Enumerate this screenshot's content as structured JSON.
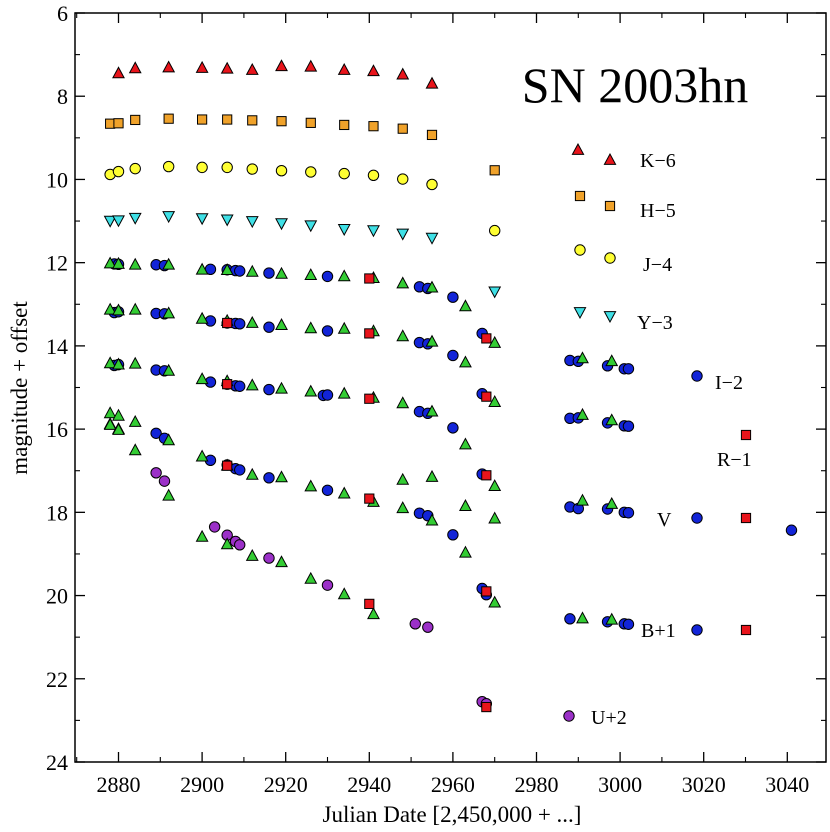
{
  "chart_data": {
    "type": "scatter",
    "title": "SN 2003hn",
    "xlabel": "Julian Date [2,450,000 + ...]",
    "ylabel": "magnitude + offset",
    "xlim": [
      2870,
      3050
    ],
    "ylim": [
      6,
      24
    ],
    "y_inverted": true,
    "x_ticks": [
      2880,
      2900,
      2920,
      2940,
      2960,
      2980,
      3000,
      3020,
      3040
    ],
    "y_ticks": [
      6,
      8,
      10,
      12,
      14,
      16,
      18,
      20,
      22,
      24
    ],
    "colors": {
      "red": "#e8141b",
      "orange": "#f0a22a",
      "yellow": "#ffff33",
      "cyan": "#3fe0e6",
      "blue": "#1224d8",
      "green": "#33cc33",
      "purple": "#9b30c8"
    },
    "series": [
      {
        "name": "K-6",
        "filter": "K",
        "offset": -6,
        "marker": "triangle-up",
        "color": "red",
        "x": [
          2880,
          2884,
          2892,
          2900,
          2906,
          2912,
          2919,
          2926,
          2934,
          2941,
          2948,
          2955
        ],
        "y": [
          7.45,
          7.33,
          7.31,
          7.32,
          7.34,
          7.37,
          7.28,
          7.29,
          7.37,
          7.4,
          7.48,
          7.7
        ]
      },
      {
        "name": "H-5",
        "filter": "H",
        "offset": -5,
        "marker": "square",
        "color": "orange",
        "x": [
          2878,
          2880,
          2884,
          2892,
          2900,
          2906,
          2912,
          2919,
          2926,
          2934,
          2941,
          2948,
          2955,
          2970
        ],
        "y": [
          8.66,
          8.65,
          8.57,
          8.54,
          8.56,
          8.56,
          8.58,
          8.6,
          8.64,
          8.69,
          8.72,
          8.78,
          8.93,
          9.78
        ]
      },
      {
        "name": "J-4",
        "filter": "J",
        "offset": -4,
        "marker": "circle",
        "color": "yellow",
        "x": [
          2878,
          2880,
          2884,
          2892,
          2900,
          2906,
          2912,
          2919,
          2926,
          2934,
          2941,
          2948,
          2955,
          2970
        ],
        "y": [
          9.88,
          9.81,
          9.74,
          9.69,
          9.71,
          9.71,
          9.75,
          9.79,
          9.82,
          9.86,
          9.9,
          9.99,
          10.12,
          11.23
        ]
      },
      {
        "name": "Y-3",
        "filter": "Y",
        "offset": -3,
        "marker": "triangle-down",
        "color": "cyan",
        "x": [
          2878,
          2880,
          2884,
          2892,
          2900,
          2906,
          2912,
          2919,
          2926,
          2934,
          2941,
          2948,
          2955,
          2970
        ],
        "y": [
          10.99,
          10.98,
          10.92,
          10.88,
          10.93,
          10.96,
          11.0,
          11.05,
          11.1,
          11.19,
          11.22,
          11.3,
          11.4,
          12.69
        ]
      },
      {
        "name": "I-2",
        "filter": "I",
        "offset": -2,
        "marker": "circle",
        "color": "blue",
        "x": [
          2879,
          2880,
          2889,
          2891,
          2902,
          2906,
          2908,
          2909,
          2916,
          2930,
          2952,
          2954,
          2960,
          2967,
          2988,
          2990,
          2997,
          3001,
          3002
        ],
        "y": [
          12.03,
          12.04,
          12.05,
          12.07,
          12.16,
          12.17,
          12.19,
          12.2,
          12.25,
          12.33,
          12.58,
          12.62,
          12.83,
          13.7,
          14.35,
          14.37,
          14.48,
          14.55,
          14.55
        ]
      },
      {
        "name": "R-1",
        "filter": "R",
        "offset": -1,
        "marker": "circle",
        "color": "blue",
        "x": [
          2879,
          2880,
          2889,
          2891,
          2902,
          2906,
          2908,
          2909,
          2916,
          2930,
          2952,
          2954,
          2960,
          2967,
          2988,
          2990,
          2997,
          3001,
          3002
        ],
        "y": [
          13.2,
          13.18,
          13.22,
          13.23,
          13.4,
          13.45,
          13.46,
          13.47,
          13.55,
          13.64,
          13.92,
          13.95,
          14.23,
          15.15,
          15.74,
          15.73,
          15.85,
          15.92,
          15.93
        ]
      },
      {
        "name": "V",
        "filter": "V",
        "offset": 0,
        "marker": "circle",
        "color": "blue",
        "x": [
          2879,
          2880,
          2889,
          2891,
          2902,
          2906,
          2908,
          2909,
          2916,
          2929,
          2930,
          2952,
          2954,
          2960,
          2967,
          2988,
          2990,
          2997,
          3001,
          3002
        ],
        "y": [
          14.47,
          14.45,
          14.58,
          14.6,
          14.87,
          14.92,
          14.96,
          14.97,
          15.05,
          15.19,
          15.18,
          15.58,
          15.62,
          15.97,
          17.08,
          17.87,
          17.91,
          17.92,
          18.0,
          18.01
        ]
      },
      {
        "name": "B+1",
        "filter": "B",
        "offset": 1,
        "marker": "circle",
        "color": "blue",
        "x": [
          2889,
          2891,
          2902,
          2906,
          2908,
          2909,
          2916,
          2930,
          2952,
          2954,
          2960,
          2967,
          2968,
          2988,
          2997,
          3001,
          3002
        ],
        "y": [
          16.1,
          16.22,
          16.75,
          16.86,
          16.95,
          16.98,
          17.17,
          17.47,
          18.02,
          18.08,
          18.54,
          19.83,
          19.98,
          20.56,
          20.63,
          20.68,
          20.69
        ]
      },
      {
        "name": "U+2",
        "filter": "U",
        "offset": 2,
        "marker": "circle",
        "color": "purple",
        "x": [
          2889,
          2891,
          2903,
          2906,
          2908,
          2909,
          2916,
          2930,
          2951,
          2954,
          2967,
          2968
        ],
        "y": [
          17.05,
          17.25,
          18.35,
          18.55,
          18.7,
          18.78,
          19.1,
          19.75,
          20.68,
          20.76,
          22.55,
          22.6
        ]
      },
      {
        "name": "green triangles (swope)",
        "marker": "triangle-up",
        "color": "green",
        "x": [
          2878,
          2880,
          2884,
          2892,
          2900,
          2906,
          2912,
          2919,
          2926,
          2934,
          2941,
          2948,
          2955,
          2963,
          2970,
          2991,
          2998,
          2878,
          2880,
          2884,
          2892,
          2900,
          2906,
          2912,
          2919,
          2926,
          2934,
          2941,
          2948,
          2955,
          2963,
          2970,
          2991,
          2998,
          2878,
          2880,
          2884,
          2892,
          2900,
          2906,
          2912,
          2919,
          2926,
          2934,
          2941,
          2948,
          2955,
          2963,
          2970,
          2878,
          2880,
          2884,
          2892,
          2900,
          2906,
          2912,
          2919,
          2926,
          2934,
          2941,
          2948,
          2955,
          2963,
          2970,
          2991,
          2998,
          2878,
          2880,
          2884,
          2892,
          2900,
          2906,
          2912,
          2919,
          2926,
          2934,
          2941,
          2948,
          2955,
          2963,
          2970,
          2991,
          2998,
          2878,
          2880
        ],
        "y": [
          12.02,
          12.03,
          12.05,
          12.05,
          12.17,
          12.18,
          12.22,
          12.27,
          12.3,
          12.33,
          12.37,
          12.5,
          12.6,
          13.05,
          13.93,
          14.3,
          14.37,
          13.13,
          13.15,
          13.13,
          13.22,
          13.35,
          13.4,
          13.45,
          13.5,
          13.58,
          13.59,
          13.65,
          13.77,
          13.9,
          14.4,
          15.35,
          15.66,
          15.79,
          14.42,
          14.45,
          14.43,
          14.6,
          14.8,
          14.85,
          14.95,
          15.03,
          15.1,
          15.15,
          15.25,
          15.38,
          15.58,
          16.37,
          17.37,
          15.62,
          15.68,
          15.83,
          16.27,
          16.66,
          16.88,
          17.1,
          17.16,
          17.38,
          17.55,
          17.75,
          17.9,
          18.2,
          18.97,
          20.17,
          17.72,
          17.8,
          15.88,
          16.0,
          16.51,
          17.6,
          18.59,
          18.77,
          19.05,
          19.2,
          19.6,
          19.97,
          20.45,
          17.22,
          17.15,
          17.85,
          18.15,
          20.55,
          20.58,
          15.9,
          16.02
        ]
      },
      {
        "name": "red squares",
        "marker": "square",
        "color": "red",
        "x": [
          2940,
          2968,
          2906,
          2940,
          2968,
          2906,
          2940,
          2968,
          2906,
          2940,
          2968,
          2940,
          2968
        ],
        "y": [
          12.38,
          13.82,
          13.45,
          13.7,
          15.22,
          14.92,
          15.27,
          17.11,
          16.88,
          17.67,
          19.9,
          20.2,
          22.68
        ]
      }
    ],
    "legend": {
      "placement": "right",
      "entries": [
        {
          "label": "K−6",
          "marker": "triangle-up",
          "color": "red",
          "pair": true
        },
        {
          "label": "H−5",
          "marker": "square",
          "color": "orange",
          "pair": true
        },
        {
          "label": "J−4",
          "marker": "circle",
          "color": "yellow",
          "pair": true
        },
        {
          "label": "Y−3",
          "marker": "triangle-down",
          "color": "cyan",
          "pair": true
        },
        {
          "label": "I−2",
          "marker": "circle",
          "color": "blue",
          "pair": false
        },
        {
          "label": "R−1",
          "marker": "square",
          "color": "red",
          "pair": false
        },
        {
          "label": "V",
          "marker": "circle+square",
          "color": "blue",
          "pair": false
        },
        {
          "label": "B+1",
          "marker": "circle+square",
          "color": "blue",
          "pair": false
        },
        {
          "label": "U+2",
          "marker": "circle",
          "color": "purple",
          "pair": false
        }
      ],
      "extra_points": [
        {
          "x": 3041,
          "y": 18.43,
          "marker": "circle",
          "color": "blue"
        }
      ]
    }
  }
}
